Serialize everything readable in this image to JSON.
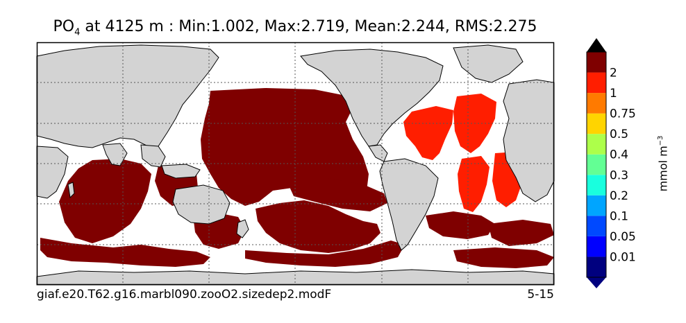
{
  "title": {
    "variable": "PO",
    "subscript": "4",
    "rest": " at 4125 m : Min:1.002, Max:2.719, Mean:2.244, RMS:2.275"
  },
  "footer": {
    "run_name": "giaf.e20.T62.g16.marbl090.zooO2.sizedep2.modF",
    "years": "5-15"
  },
  "units": {
    "base": "mmol m",
    "exponent": "−3"
  },
  "colorbar": {
    "labels": [
      "0.01",
      "0.05",
      "0.1",
      "0.2",
      "0.3",
      "0.4",
      "0.5",
      "0.75",
      "1",
      "2"
    ],
    "colors": [
      "#00007f",
      "#0000ff",
      "#0049ff",
      "#00a5ff",
      "#19ffde",
      "#63ff94",
      "#adff4a",
      "#ffd400",
      "#ff7a00",
      "#ff1e00",
      "#7f0000"
    ],
    "under_color": "#00007f",
    "over_color": "#000000"
  },
  "map": {
    "land_color": "#d3d3d3",
    "ocean_nodata_color": "#ffffff",
    "high_value_color": "#7f0000",
    "atlantic_value_color": "#ff1e00",
    "grid": "dotted"
  }
}
